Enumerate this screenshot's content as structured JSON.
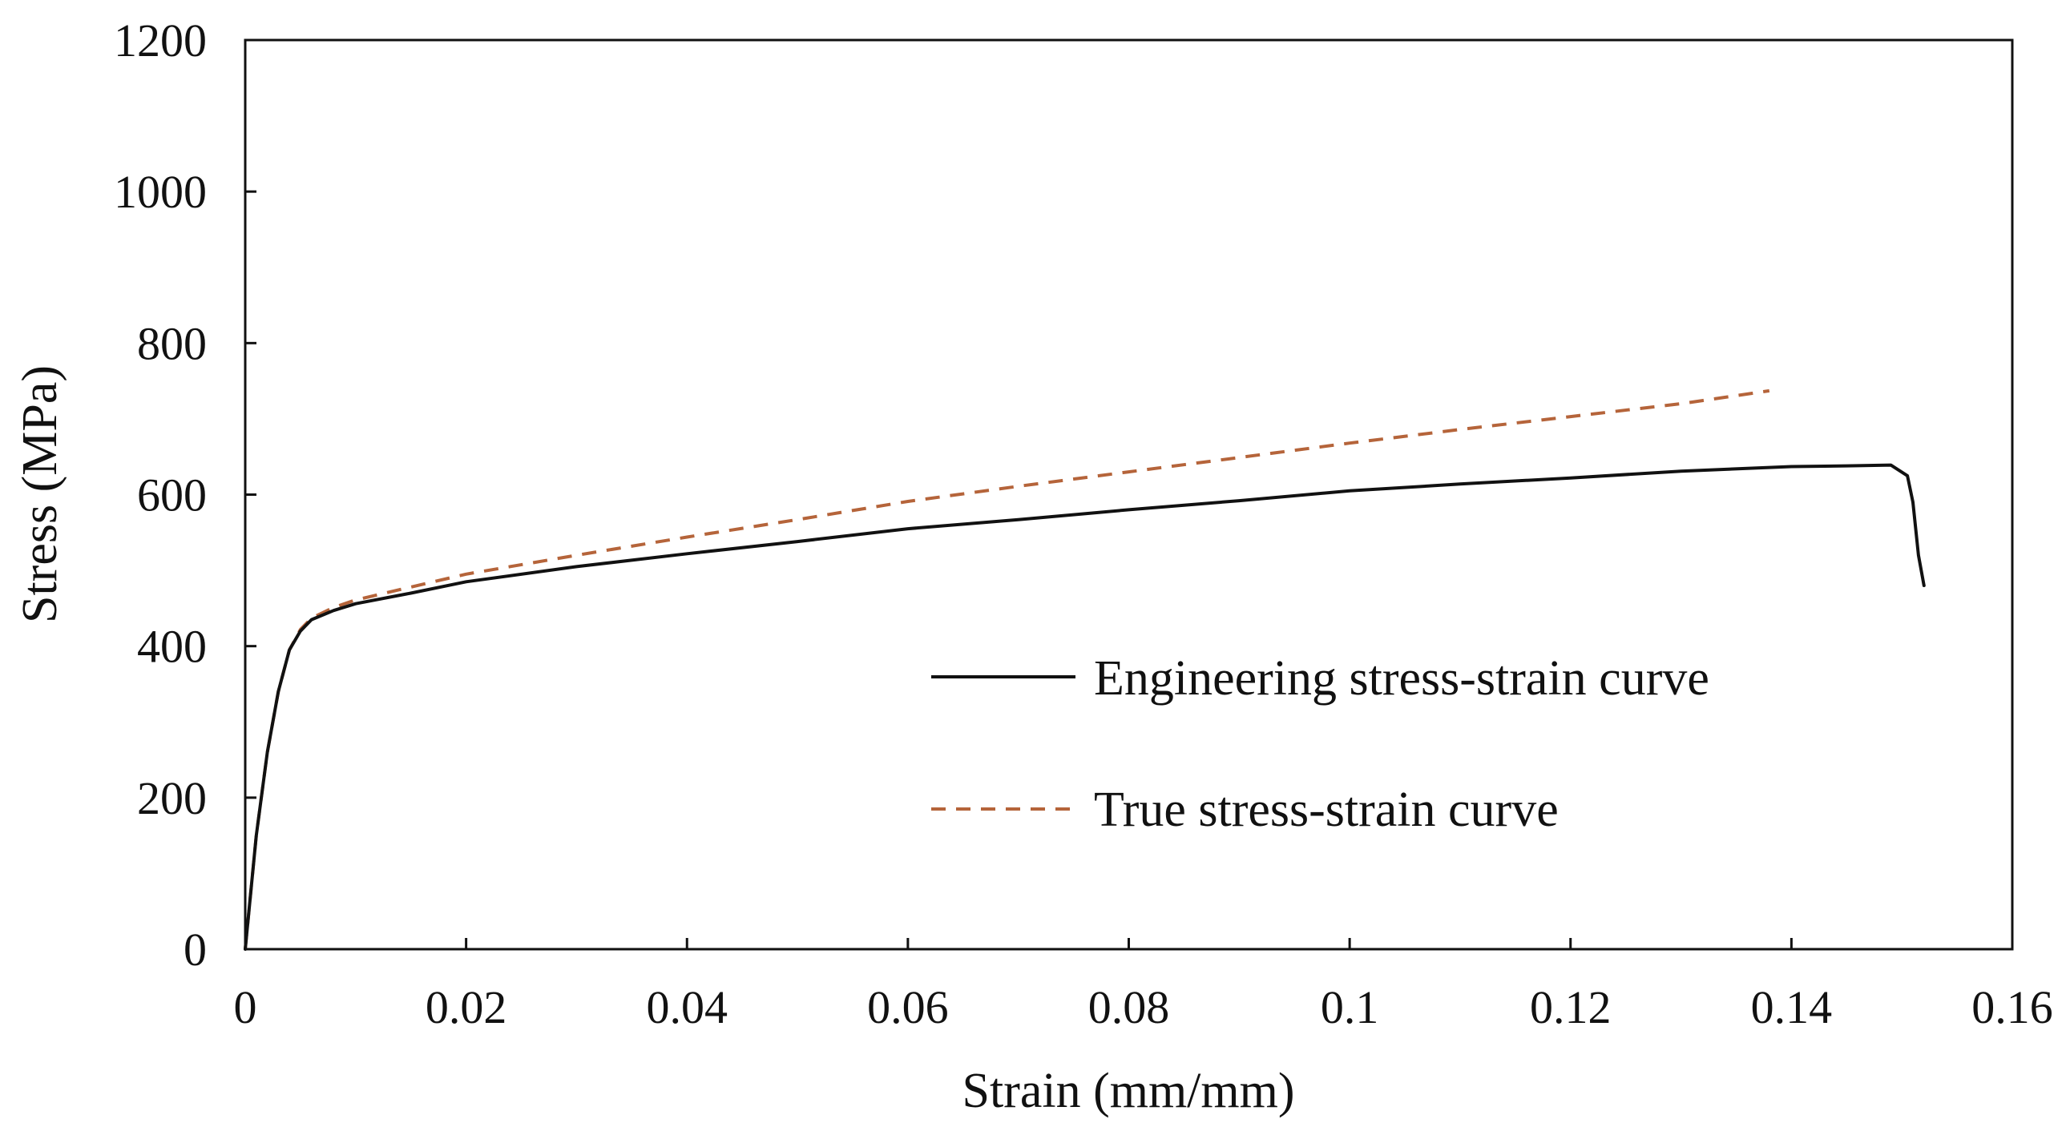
{
  "chart_data": {
    "type": "line",
    "title": "",
    "xlabel": "Strain (mm/mm)",
    "ylabel": "Stress (MPa)",
    "xlim": [
      0,
      0.16
    ],
    "ylim": [
      0,
      1200
    ],
    "x_ticks": [
      0,
      0.02,
      0.04,
      0.06,
      0.08,
      0.1,
      0.12,
      0.14,
      0.16
    ],
    "x_tick_labels": [
      "0",
      "0.02",
      "0.04",
      "0.06",
      "0.08",
      "0.1",
      "0.12",
      "0.14",
      "0.16"
    ],
    "y_ticks": [
      0,
      200,
      400,
      600,
      800,
      1000,
      1200
    ],
    "y_tick_labels": [
      "0",
      "200",
      "400",
      "600",
      "800",
      "1000",
      "1200"
    ],
    "grid": false,
    "legend_position": "center-right",
    "series": [
      {
        "name": "Engineering stress-strain curve",
        "color": "#111111",
        "dash": "solid",
        "points": [
          [
            0,
            0
          ],
          [
            0.001,
            150
          ],
          [
            0.002,
            260
          ],
          [
            0.003,
            340
          ],
          [
            0.004,
            395
          ],
          [
            0.005,
            420
          ],
          [
            0.006,
            435
          ],
          [
            0.008,
            447
          ],
          [
            0.01,
            456
          ],
          [
            0.015,
            470
          ],
          [
            0.02,
            485
          ],
          [
            0.03,
            505
          ],
          [
            0.04,
            522
          ],
          [
            0.05,
            538
          ],
          [
            0.06,
            555
          ],
          [
            0.07,
            567
          ],
          [
            0.08,
            580
          ],
          [
            0.09,
            592
          ],
          [
            0.1,
            605
          ],
          [
            0.11,
            614
          ],
          [
            0.12,
            622
          ],
          [
            0.13,
            631
          ],
          [
            0.14,
            637
          ],
          [
            0.145,
            638
          ],
          [
            0.149,
            639
          ],
          [
            0.1505,
            625
          ],
          [
            0.151,
            590
          ],
          [
            0.1515,
            520
          ],
          [
            0.152,
            480
          ]
        ]
      },
      {
        "name": "True stress-strain curve",
        "color": "#b5643a",
        "dash": "dashed",
        "points": [
          [
            0,
            0
          ],
          [
            0.001,
            150
          ],
          [
            0.002,
            260
          ],
          [
            0.003,
            340
          ],
          [
            0.004,
            395
          ],
          [
            0.005,
            422
          ],
          [
            0.006,
            437
          ],
          [
            0.008,
            451
          ],
          [
            0.01,
            461
          ],
          [
            0.015,
            478
          ],
          [
            0.02,
            495
          ],
          [
            0.03,
            520
          ],
          [
            0.04,
            544
          ],
          [
            0.05,
            567
          ],
          [
            0.06,
            591
          ],
          [
            0.07,
            611
          ],
          [
            0.08,
            630
          ],
          [
            0.09,
            649
          ],
          [
            0.1,
            668
          ],
          [
            0.11,
            686
          ],
          [
            0.12,
            703
          ],
          [
            0.13,
            720
          ],
          [
            0.138,
            737
          ]
        ]
      }
    ]
  }
}
